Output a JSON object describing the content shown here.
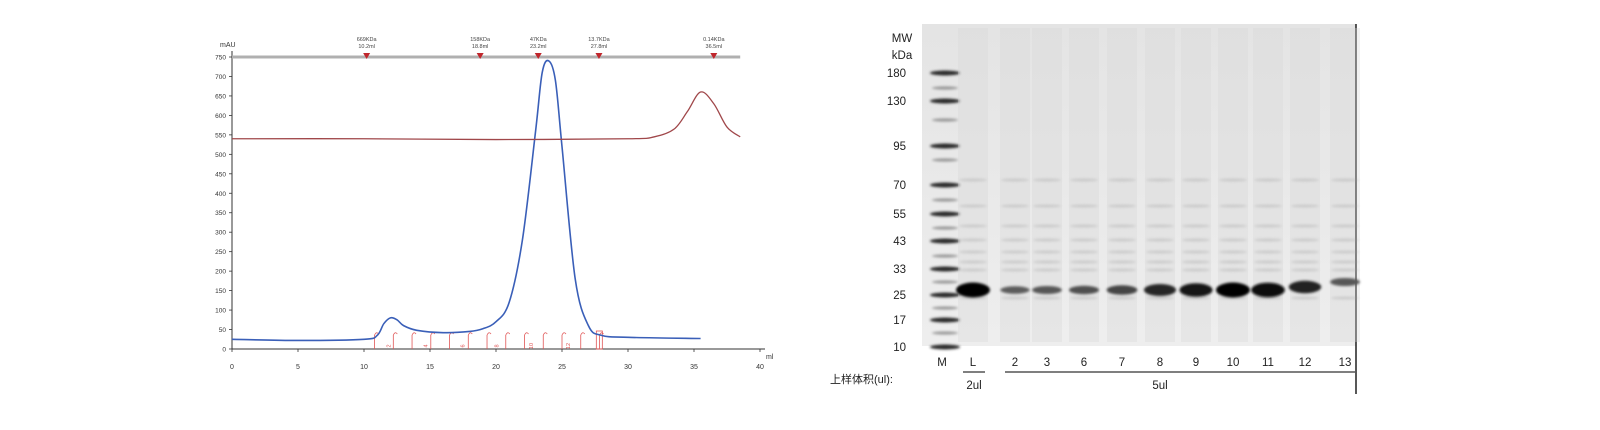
{
  "chart_data": [
    {
      "type": "line",
      "ylabel": "mAU",
      "xlabel": "ml",
      "xlim": [
        0,
        40
      ],
      "ylim": [
        0,
        750
      ],
      "x_ticks": [
        0,
        5,
        10,
        15,
        20,
        25,
        30,
        35,
        40
      ],
      "y_ticks": [
        0,
        50,
        100,
        150,
        200,
        250,
        300,
        350,
        400,
        450,
        500,
        550,
        600,
        650,
        700,
        750
      ],
      "calibration_markers": [
        {
          "mw": "669KDa",
          "volume": "10.2ml",
          "x": 10.2
        },
        {
          "mw": "158KDa",
          "volume": "18.8ml",
          "x": 18.8
        },
        {
          "mw": "47KDa",
          "volume": "23.2ml",
          "x": 23.2
        },
        {
          "mw": "13.7KDa",
          "volume": "27.8ml",
          "x": 27.8
        },
        {
          "mw": "0.14KDa",
          "volume": "36.5ml",
          "x": 36.5
        }
      ],
      "fraction_labels": [
        {
          "label": "2",
          "x": 12.0
        },
        {
          "label": "4",
          "x": 14.8
        },
        {
          "label": "6",
          "x": 17.6
        },
        {
          "label": "8",
          "x": 20.2
        },
        {
          "label": "10",
          "x": 22.8
        },
        {
          "label": "12",
          "x": 25.6
        }
      ],
      "series": [
        {
          "color": "#3a5fb8",
          "x": [
            0,
            5,
            10,
            11,
            11.5,
            12,
            12.5,
            13,
            14,
            16,
            18,
            19,
            20,
            21,
            22,
            23,
            23.5,
            24,
            24.5,
            25,
            26,
            27,
            28,
            30,
            35.5
          ],
          "y": [
            25,
            22,
            25,
            35,
            65,
            80,
            75,
            60,
            48,
            42,
            45,
            52,
            70,
            120,
            280,
            560,
            710,
            740,
            690,
            520,
            180,
            60,
            35,
            30,
            27
          ]
        },
        {
          "color": "#a0474a",
          "x": [
            0,
            10,
            20,
            30,
            32,
            33.5,
            34.5,
            35.5,
            36.5,
            37.5,
            38.5
          ],
          "y": [
            540,
            540,
            538,
            540,
            545,
            565,
            610,
            660,
            630,
            570,
            545
          ]
        }
      ]
    },
    {
      "type": "table",
      "y_title_line1": "MW",
      "y_title_line2": "kDa",
      "marker_sizes": [
        "180",
        "130",
        "95",
        "70",
        "55",
        "43",
        "33",
        "25",
        "17",
        "10"
      ],
      "lane_labels": [
        "M",
        "L",
        "2",
        "3",
        "6",
        "7",
        "8",
        "9",
        "10",
        "11",
        "12",
        "13"
      ],
      "band_intensity": [
        0,
        1.0,
        0.25,
        0.3,
        0.35,
        0.45,
        0.7,
        0.85,
        1.0,
        0.95,
        0.75,
        0.3
      ],
      "loading_volume_label": "上样体积(ul):",
      "volume_L": "2ul",
      "volume_rest": "5ul"
    }
  ]
}
